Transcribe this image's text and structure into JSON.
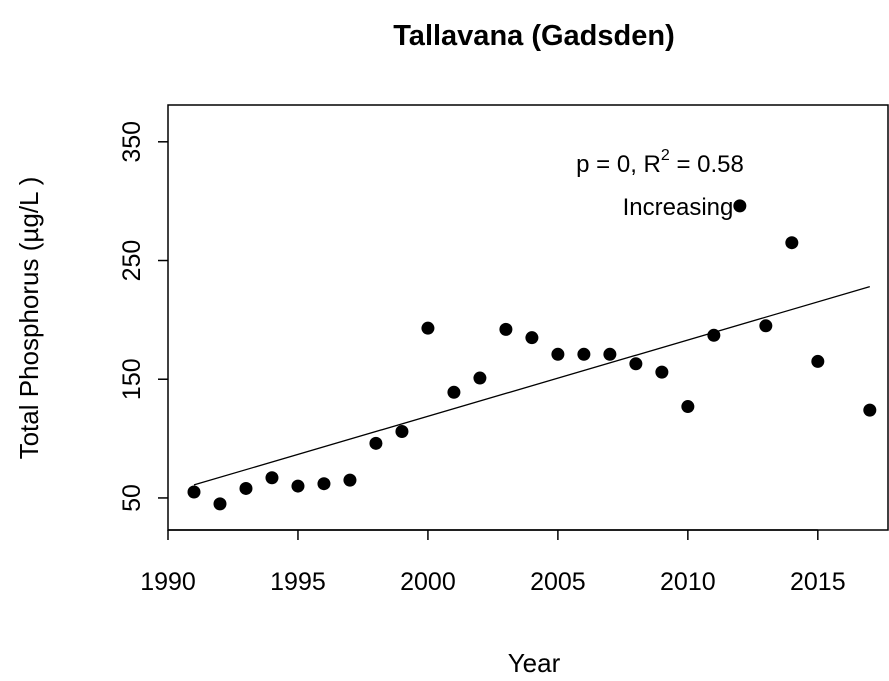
{
  "chart_data": {
    "type": "scatter",
    "title": "Tallavana (Gadsden)",
    "x_label": "Year",
    "y_label": "Total Phosphorus (µg/L )",
    "x": [
      1991,
      1992,
      1993,
      1994,
      1995,
      1996,
      1997,
      1998,
      1999,
      2000,
      2001,
      2002,
      2003,
      2004,
      2005,
      2006,
      2007,
      2008,
      2009,
      2010,
      2011,
      2012,
      2013,
      2014,
      2015,
      2017
    ],
    "values": [
      55,
      45,
      58,
      67,
      60,
      62,
      65,
      96,
      106,
      193,
      139,
      151,
      192,
      185,
      171,
      171,
      171,
      163,
      156,
      127,
      187,
      296,
      195,
      265,
      165,
      124
    ],
    "color": "#000000",
    "trend": {
      "x": [
        1991,
        2017
      ],
      "values": [
        61,
        228
      ]
    },
    "annotation": {
      "prefix": "p = 0, R",
      "superscript": "2",
      "suffix": " = 0.58",
      "note": "Increasing"
    },
    "xlim": [
      1990,
      2017.7
    ],
    "ylim": [
      23,
      381
    ],
    "xticks": [
      1990,
      1995,
      2000,
      2005,
      2010,
      2015
    ],
    "yticks": [
      50,
      150,
      250,
      350
    ]
  }
}
